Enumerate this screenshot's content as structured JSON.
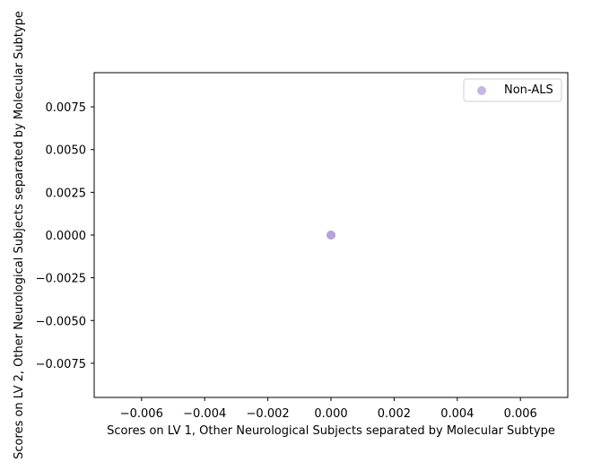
{
  "chart_data": {
    "type": "scatter",
    "title": "",
    "xlabel": "Scores on LV 1, Other Neurological Subjects separated by Molecular Subtype",
    "ylabel": "Scores on LV 2, Other Neurological Subjects separated by Molecular Subtype",
    "xlim": [
      -0.0075,
      0.0075
    ],
    "ylim": [
      -0.0095,
      0.0095
    ],
    "x_ticks": [
      -0.006,
      -0.004,
      -0.002,
      0.0,
      0.002,
      0.004,
      0.006
    ],
    "x_tick_labels": [
      "−0.006",
      "−0.004",
      "−0.002",
      "0.000",
      "0.002",
      "0.004",
      "0.006"
    ],
    "y_ticks": [
      0.0075,
      0.005,
      0.0025,
      0.0,
      -0.0025,
      -0.005,
      -0.0075
    ],
    "y_tick_labels": [
      "0.0075",
      "0.0050",
      "0.0025",
      "0.0000",
      "−0.0025",
      "−0.0050",
      "−0.0075"
    ],
    "grid": false,
    "legend_position": "top-right",
    "series": [
      {
        "name": "Non-ALS",
        "color": "#b19cd9",
        "points": [
          {
            "x": 0.0,
            "y": 0.0
          },
          {
            "x": 0.0,
            "y": 0.0
          }
        ]
      }
    ]
  }
}
